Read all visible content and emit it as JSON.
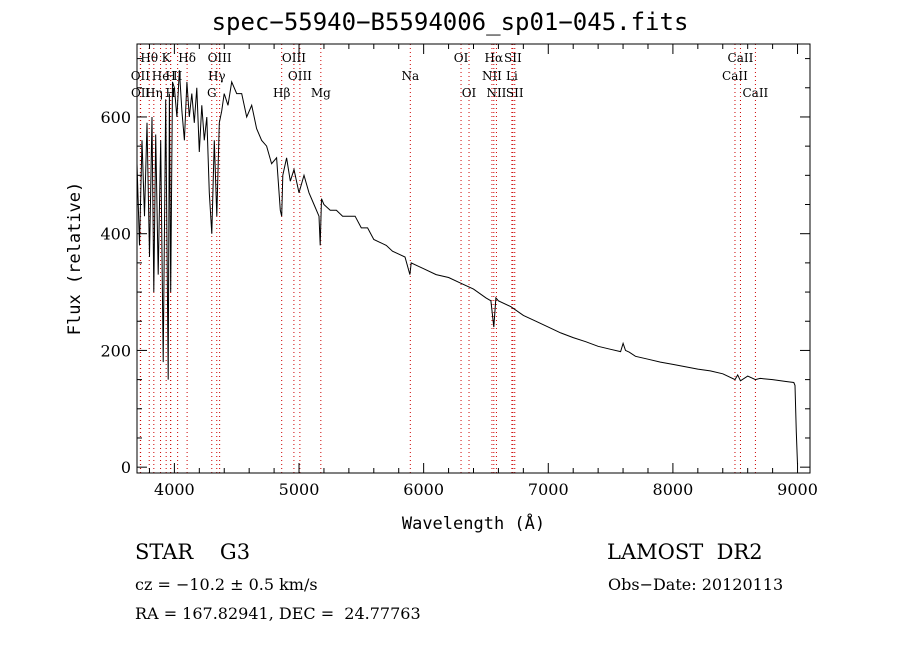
{
  "title": "spec−55940−B5594006_sp01−045.fits",
  "info": {
    "object_class": "STAR    G3",
    "survey": "LAMOST  DR2",
    "redshift": "cz = −10.2 ± 0.5 km/s",
    "obs_date": "Obs−Date: 20120113",
    "coords": "RA = 167.82941, DEC =  24.77763"
  },
  "chart_data": {
    "type": "line",
    "xlabel": "Wavelength (Å)",
    "ylabel": "Flux (relative)",
    "xlim": [
      3700,
      9100
    ],
    "ylim": [
      -10,
      725
    ],
    "xticks": [
      4000,
      5000,
      6000,
      7000,
      8000,
      9000
    ],
    "yticks": [
      0,
      200,
      400,
      600
    ],
    "series": [
      {
        "x": [
          3700,
          3720,
          3740,
          3760,
          3780,
          3800,
          3820,
          3835,
          3850,
          3870,
          3890,
          3910,
          3930,
          3950,
          3960,
          3970,
          3985,
          4000,
          4020,
          4040,
          4060,
          4080,
          4100,
          4120,
          4140,
          4160,
          4180,
          4200,
          4220,
          4240,
          4260,
          4280,
          4300,
          4320,
          4340,
          4360,
          4380,
          4400,
          4430,
          4460,
          4500,
          4540,
          4580,
          4620,
          4660,
          4700,
          4740,
          4780,
          4820,
          4850,
          4861,
          4870,
          4900,
          4930,
          4960,
          5000,
          5040,
          5080,
          5120,
          5160,
          5170,
          5180,
          5200,
          5250,
          5300,
          5350,
          5400,
          5450,
          5500,
          5550,
          5600,
          5650,
          5700,
          5750,
          5800,
          5850,
          5890,
          5900,
          5950,
          6000,
          6100,
          6200,
          6300,
          6400,
          6500,
          6540,
          6563,
          6580,
          6600,
          6700,
          6800,
          6900,
          7000,
          7100,
          7200,
          7300,
          7400,
          7500,
          7580,
          7600,
          7620,
          7650,
          7700,
          7800,
          7900,
          8000,
          8100,
          8200,
          8300,
          8400,
          8498,
          8520,
          8542,
          8600,
          8662,
          8700,
          8800,
          8900,
          8970,
          8980,
          8990,
          9000
        ],
        "y": [
          520,
          380,
          560,
          430,
          590,
          360,
          600,
          300,
          570,
          330,
          560,
          180,
          630,
          150,
          640,
          300,
          660,
          650,
          600,
          680,
          610,
          560,
          660,
          600,
          640,
          590,
          650,
          540,
          620,
          560,
          600,
          470,
          400,
          560,
          430,
          590,
          610,
          640,
          620,
          660,
          640,
          640,
          600,
          620,
          580,
          560,
          550,
          520,
          530,
          440,
          430,
          500,
          530,
          490,
          510,
          470,
          500,
          470,
          450,
          430,
          380,
          460,
          450,
          440,
          440,
          430,
          430,
          430,
          410,
          410,
          390,
          385,
          380,
          370,
          365,
          360,
          330,
          350,
          345,
          340,
          330,
          325,
          315,
          305,
          290,
          285,
          240,
          290,
          285,
          275,
          260,
          250,
          240,
          230,
          222,
          215,
          207,
          202,
          198,
          212,
          200,
          197,
          190,
          185,
          180,
          176,
          172,
          168,
          165,
          160,
          150,
          158,
          148,
          156,
          150,
          152,
          150,
          147,
          145,
          140,
          60,
          5
        ]
      }
    ],
    "lines": [
      {
        "name": "Hθ",
        "x": 3798,
        "row": 0
      },
      {
        "name": "K",
        "x": 3934,
        "row": 0
      },
      {
        "name": "Hδ",
        "x": 4102,
        "row": 0
      },
      {
        "name": "OIII",
        "x": 4363,
        "row": 0
      },
      {
        "name": "OIII",
        "x": 4959,
        "row": 0
      },
      {
        "name": "OI",
        "x": 6300,
        "row": 0
      },
      {
        "name": "Hα",
        "x": 6563,
        "row": 0
      },
      {
        "name": "SII",
        "x": 6716,
        "row": 0
      },
      {
        "name": "CaII",
        "x": 8542,
        "row": 0
      },
      {
        "name": "OII",
        "x": 3727,
        "row": 1
      },
      {
        "name": "He",
        "x": 3889,
        "row": 1
      },
      {
        "name": "H",
        "x": 3970,
        "row": 1
      },
      {
        "name": "II",
        "x": 4026,
        "row": 1
      },
      {
        "name": "Hγ",
        "x": 4340,
        "row": 1
      },
      {
        "name": "OIII",
        "x": 5007,
        "row": 1
      },
      {
        "name": "Na",
        "x": 5893,
        "row": 1
      },
      {
        "name": "NII",
        "x": 6548,
        "row": 1
      },
      {
        "name": "Li",
        "x": 6708,
        "row": 1
      },
      {
        "name": "CaII",
        "x": 8498,
        "row": 1
      },
      {
        "name": "OII",
        "x": 3729,
        "row": 2
      },
      {
        "name": "Hη",
        "x": 3835,
        "row": 2
      },
      {
        "name": "H",
        "x": 3970,
        "row": 2
      },
      {
        "name": "G",
        "x": 4300,
        "row": 2
      },
      {
        "name": "Hβ",
        "x": 4861,
        "row": 2
      },
      {
        "name": "Mg",
        "x": 5175,
        "row": 2
      },
      {
        "name": "OI",
        "x": 6364,
        "row": 2
      },
      {
        "name": "NII",
        "x": 6584,
        "row": 2
      },
      {
        "name": "SII",
        "x": 6731,
        "row": 2
      },
      {
        "name": "CaII",
        "x": 8662,
        "row": 2
      }
    ],
    "grid": false,
    "colors": {
      "spectrum": "#000000",
      "line_markers": "#cc0000",
      "axes": "#000000"
    }
  }
}
